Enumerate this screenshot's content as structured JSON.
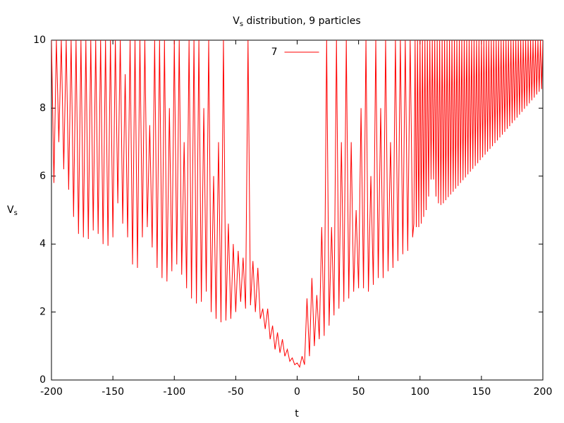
{
  "chart_data": {
    "type": "line",
    "title": {
      "symbol": "V",
      "subscript": "s",
      "text": " distribution, 9 particles"
    },
    "xlabel": "t",
    "ylabel": {
      "symbol": "V",
      "subscript": "s"
    },
    "xlim": [
      -200,
      200
    ],
    "xticks": [
      -200,
      -150,
      -100,
      -50,
      0,
      50,
      100,
      150,
      200
    ],
    "ylim": [
      0,
      10
    ],
    "yticks": [
      0,
      2,
      4,
      6,
      8,
      10
    ],
    "legend": "top center",
    "x": [
      -200,
      -198,
      -196,
      -194,
      -192,
      -190,
      -188,
      -186,
      -184,
      -182,
      -180,
      -178,
      -176,
      -174,
      -172,
      -170,
      -168,
      -166,
      -164,
      -162,
      -160,
      -158,
      -156,
      -154,
      -152,
      -150,
      -148,
      -146,
      -144,
      -142,
      -140,
      -138,
      -136,
      -134,
      -132,
      -130,
      -128,
      -126,
      -124,
      -122,
      -120,
      -118,
      -116,
      -114,
      -112,
      -110,
      -108,
      -106,
      -104,
      -102,
      -100,
      -98,
      -96,
      -94,
      -92,
      -90,
      -88,
      -86,
      -84,
      -82,
      -80,
      -78,
      -76,
      -74,
      -72,
      -70,
      -68,
      -66,
      -64,
      -62,
      -60,
      -58,
      -56,
      -54,
      -52,
      -50,
      -48,
      -46,
      -44,
      -42,
      -40,
      -38,
      -36,
      -34,
      -32,
      -30,
      -28,
      -26,
      -24,
      -22,
      -20,
      -18,
      -16,
      -14,
      -12,
      -10,
      -8,
      -6,
      -4,
      -2,
      0,
      2,
      4,
      6,
      8,
      10,
      12,
      14,
      16,
      18,
      20,
      22,
      24,
      26,
      28,
      30,
      32,
      34,
      36,
      38,
      40,
      42,
      44,
      46,
      48,
      50,
      52,
      54,
      56,
      58,
      60,
      62,
      64,
      66,
      68,
      70,
      72,
      74,
      76,
      78,
      80,
      82,
      84,
      86,
      88,
      90,
      92,
      94,
      95,
      96,
      97,
      98,
      99,
      100,
      101,
      102,
      103,
      104,
      105,
      106,
      107,
      108,
      109,
      110,
      111,
      112,
      113,
      114,
      115,
      116,
      117,
      118,
      119,
      120,
      121,
      122,
      123,
      124,
      125,
      126,
      127,
      128,
      129,
      130,
      131,
      132,
      133,
      134,
      135,
      136,
      137,
      138,
      139,
      140,
      141,
      142,
      143,
      144,
      145,
      146,
      147,
      148,
      149,
      150,
      151,
      152,
      153,
      154,
      155,
      156,
      157,
      158,
      159,
      160,
      161,
      162,
      163,
      164,
      165,
      166,
      167,
      168,
      169,
      170,
      171,
      172,
      173,
      174,
      175,
      176,
      177,
      178,
      179,
      180,
      181,
      182,
      183,
      184,
      185,
      186,
      187,
      188,
      189,
      190,
      191,
      192,
      193,
      194,
      195,
      196,
      197,
      198,
      199,
      200
    ],
    "series": [
      {
        "name": "7",
        "color": "#ff0000",
        "values": [
          10,
          5.8,
          10,
          7.0,
          10,
          6.2,
          10,
          5.6,
          10,
          4.8,
          10,
          4.3,
          10,
          4.2,
          10,
          4.15,
          10,
          4.4,
          10,
          4.3,
          10,
          4.0,
          10,
          3.95,
          10,
          4.2,
          10,
          5.2,
          10,
          4.6,
          9,
          4.2,
          10,
          3.4,
          10,
          3.3,
          10,
          4.2,
          10,
          4.5,
          7.5,
          3.9,
          10,
          3.3,
          10,
          3.0,
          10,
          2.9,
          8,
          3.2,
          10,
          3.4,
          10,
          3.1,
          7,
          2.7,
          10,
          2.4,
          10,
          2.25,
          10,
          2.3,
          8,
          2.6,
          10,
          2.0,
          6,
          1.8,
          7,
          1.7,
          10,
          1.75,
          4.6,
          1.8,
          4,
          2.0,
          3.8,
          2.3,
          3.6,
          2.1,
          10,
          2.2,
          3.5,
          2.0,
          3.3,
          1.8,
          2.1,
          1.5,
          2.1,
          1.2,
          1.6,
          0.9,
          1.4,
          0.8,
          1.2,
          0.7,
          0.9,
          0.55,
          0.65,
          0.45,
          0.5,
          0.38,
          0.7,
          0.45,
          2.4,
          0.7,
          3.0,
          1.0,
          2.5,
          1.2,
          4.5,
          1.3,
          10,
          1.6,
          4.5,
          1.9,
          10,
          2.1,
          7,
          2.3,
          10,
          2.4,
          7,
          2.6,
          5,
          2.7,
          8,
          2.7,
          10,
          2.6,
          6,
          2.8,
          10,
          3.0,
          8,
          3.0,
          10,
          3.2,
          7,
          3.3,
          10,
          3.5,
          10,
          3.7,
          10,
          3.8,
          10,
          4.2,
          4.6,
          10,
          4.5,
          10,
          4.5,
          10,
          4.6,
          10,
          4.8,
          10,
          5.0,
          10,
          5.4,
          10,
          5.9,
          10,
          5.9,
          10,
          5.4,
          10,
          5.2,
          10,
          5.15,
          10,
          5.2,
          10,
          5.29,
          10,
          5.38,
          10,
          5.46,
          10,
          5.54,
          10,
          5.63,
          10,
          5.71,
          10,
          5.8,
          10,
          5.88,
          10,
          5.96,
          10,
          6.05,
          10,
          6.13,
          10,
          6.21,
          10,
          6.3,
          10,
          6.38,
          10,
          6.47,
          10,
          6.55,
          10,
          6.63,
          10,
          6.72,
          10,
          6.8,
          10,
          6.88,
          10,
          6.97,
          10,
          7.05,
          10,
          7.14,
          10,
          7.22,
          10,
          7.3,
          10,
          7.39,
          10,
          7.47,
          10,
          7.56,
          10,
          7.64,
          10,
          7.72,
          10,
          7.81,
          10,
          7.89,
          10,
          7.98,
          10,
          8.06,
          10,
          8.14,
          10,
          8.23,
          10,
          8.31,
          10,
          8.4,
          10,
          8.48,
          10,
          8.56,
          10
        ]
      }
    ]
  }
}
